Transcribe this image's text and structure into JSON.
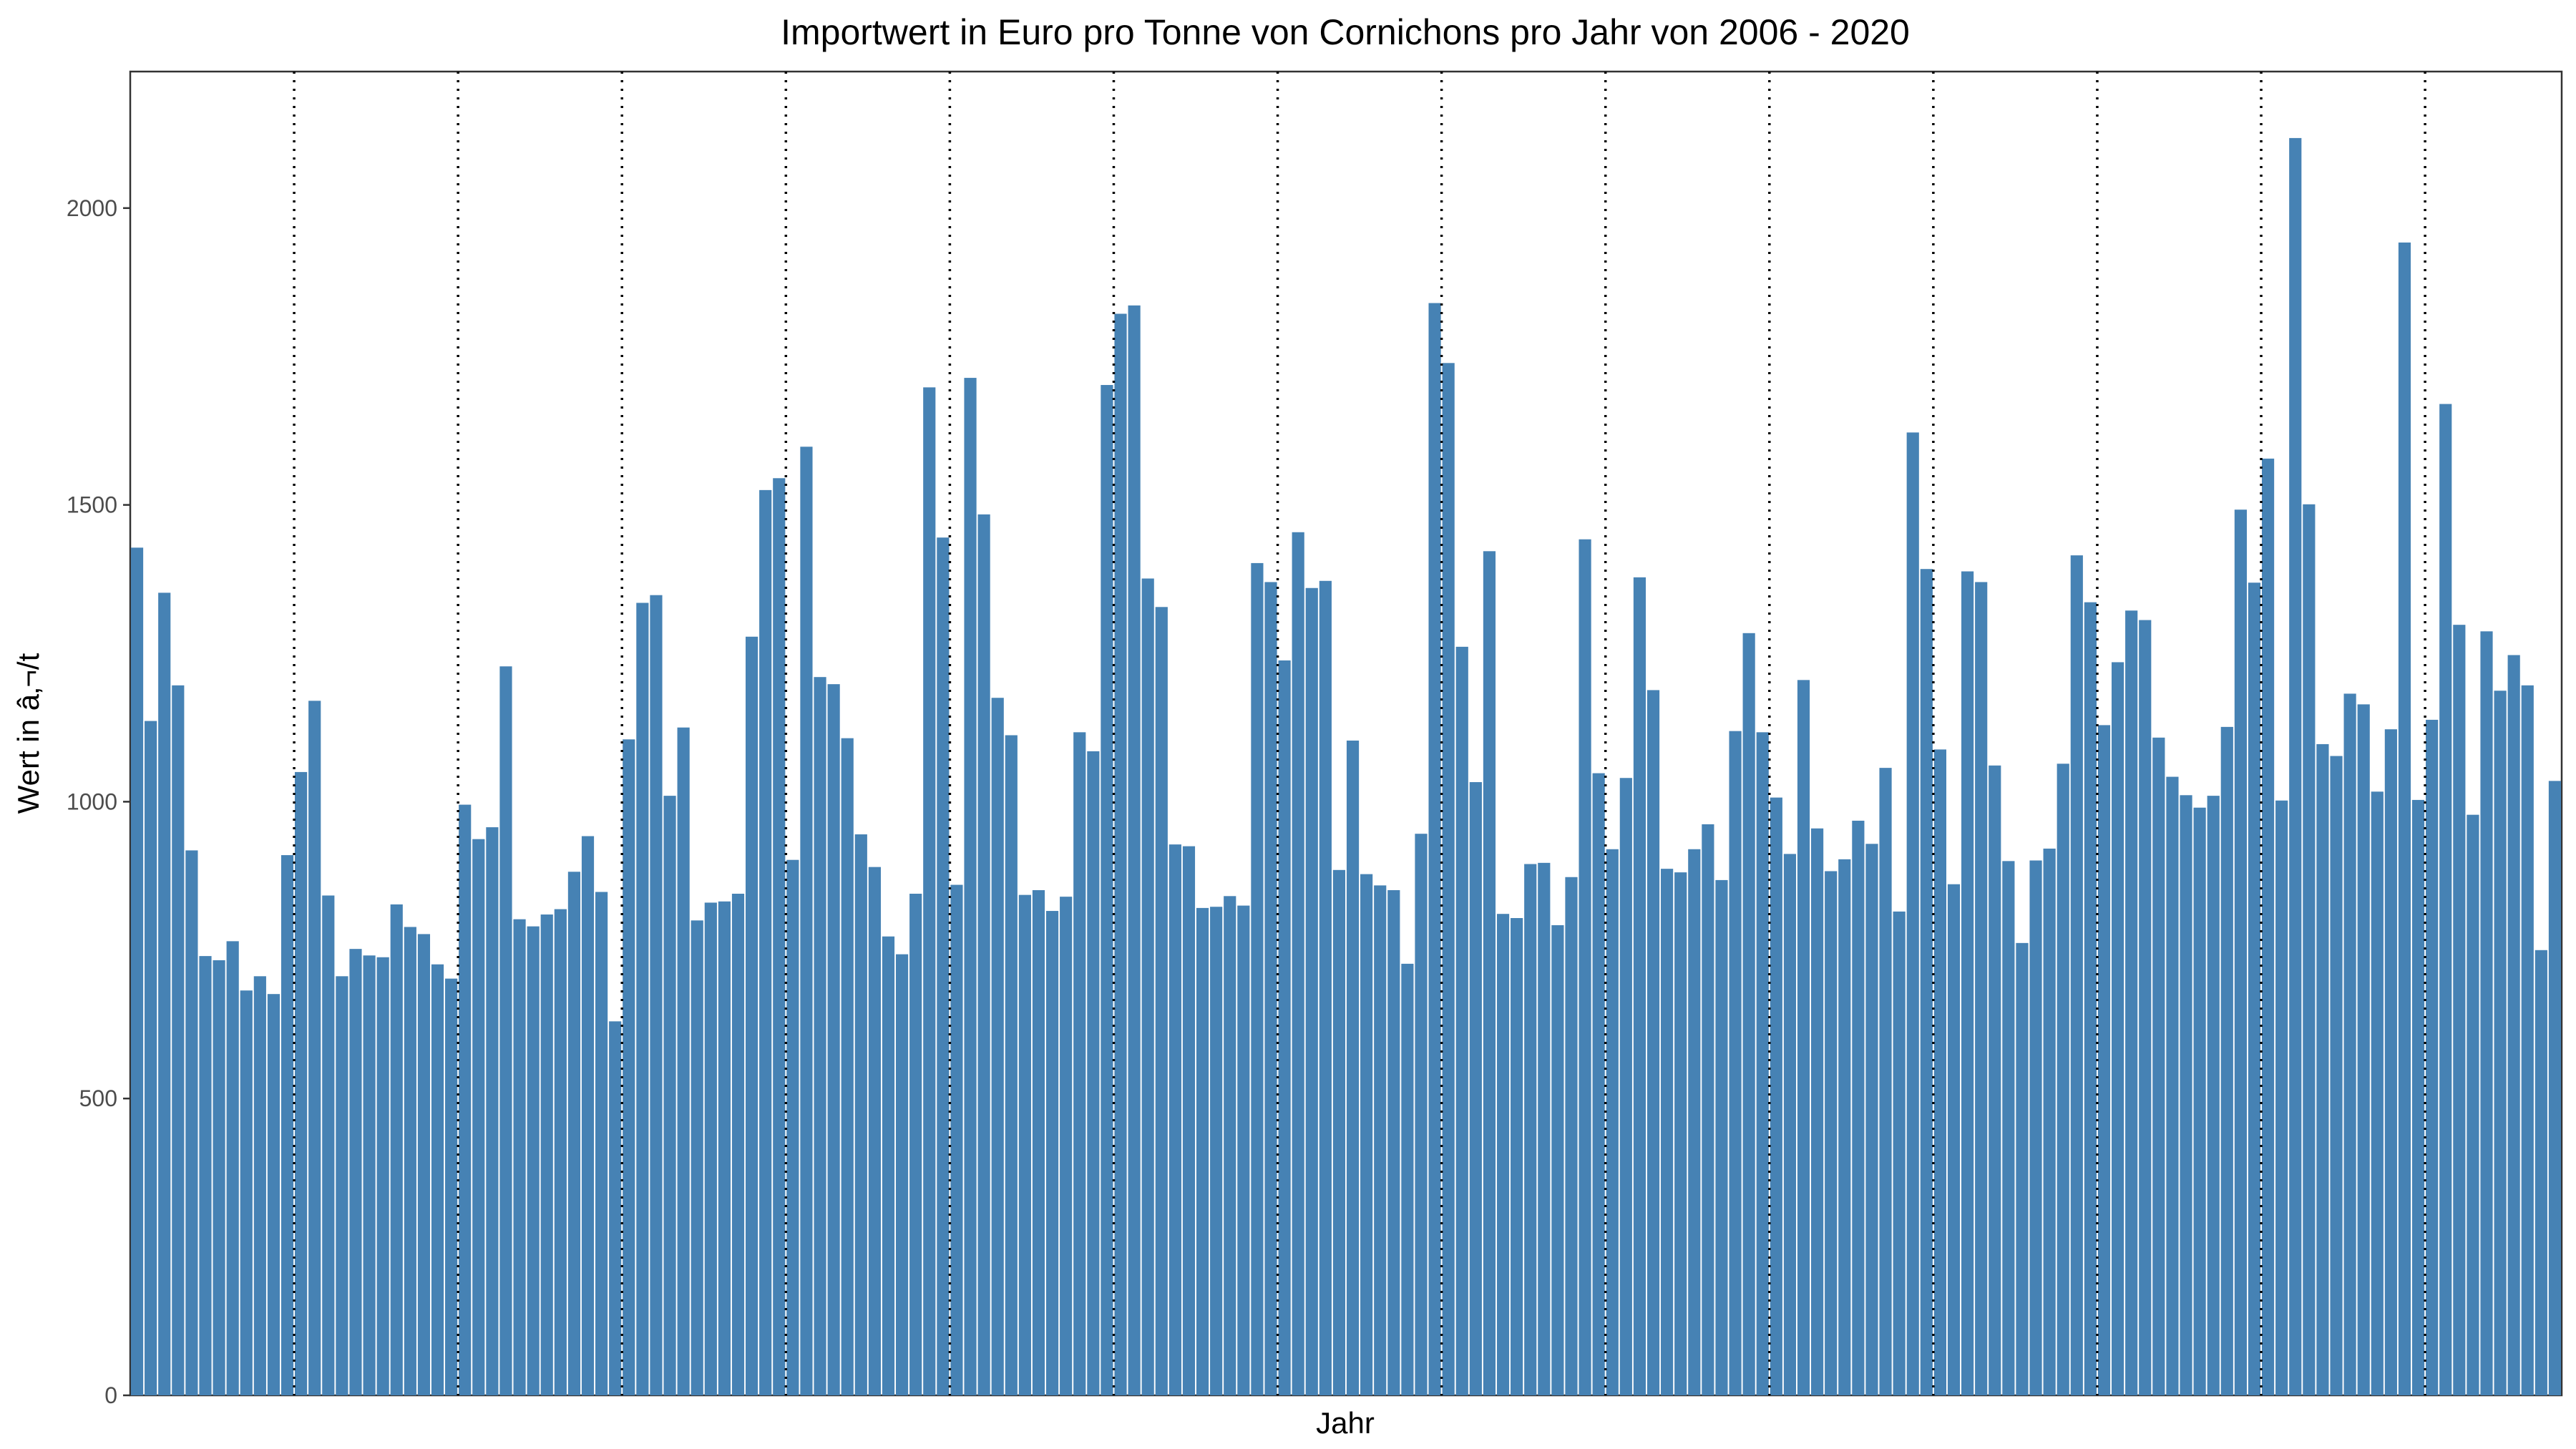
{
  "chart_data": {
    "type": "bar",
    "title": "Importwert in Euro pro Tonne von Cornichons pro Jahr von 2006 - 2020",
    "xlabel": "Jahr",
    "ylabel": "Wert in â‚¬/t",
    "ylim": [
      0,
      2230
    ],
    "yticks": [
      0,
      500,
      1000,
      1500,
      2000
    ],
    "grid": false,
    "year_separators": "dotted vertical line after every 12 monthly bars",
    "bar_color": "#4682B4",
    "values": [
      1428,
      1136,
      1352,
      1196,
      918,
      740,
      733,
      765,
      682,
      706,
      676,
      910,
      1050,
      1170,
      842,
      706,
      752,
      741,
      738,
      827,
      789,
      777,
      726,
      702,
      995,
      937,
      957,
      1228,
      802,
      790,
      810,
      819,
      882,
      942,
      848,
      630,
      1105,
      1335,
      1348,
      1010,
      1125,
      800,
      830,
      832,
      845,
      1278,
      1525,
      1545,
      902,
      1598,
      1210,
      1198,
      1107,
      945,
      890,
      773,
      743,
      845,
      1698,
      1445,
      860,
      1714,
      1484,
      1175,
      1112,
      843,
      851,
      816,
      840,
      1117,
      1085,
      1702,
      1822,
      1836,
      1376,
      1328,
      928,
      925,
      821,
      823,
      841,
      825,
      1402,
      1370,
      1238,
      1454,
      1360,
      1372,
      885,
      1103,
      878,
      859,
      851,
      727,
      946,
      1840,
      1739,
      1261,
      1033,
      1422,
      811,
      804,
      895,
      897,
      792,
      873,
      1442,
      1048,
      920,
      1040,
      1378,
      1188,
      887,
      881,
      920,
      962,
      868,
      1119,
      1284,
      1117,
      1007,
      912,
      1205,
      955,
      883,
      903,
      968,
      929,
      1057,
      815,
      1622,
      1392,
      1088,
      861,
      1388,
      1370,
      1061,
      900,
      762,
      901,
      921,
      1064,
      1415,
      1336,
      1129,
      1235,
      1322,
      1306,
      1108,
      1042,
      1011,
      990,
      1010,
      1126,
      1492,
      1369,
      1578,
      1002,
      2118,
      1501,
      1097,
      1077,
      1182,
      1164,
      1017,
      1122,
      1942,
      1003,
      1138,
      1670,
      1298,
      978,
      1287,
      1187,
      1247,
      1196,
      750,
      1035
    ]
  }
}
